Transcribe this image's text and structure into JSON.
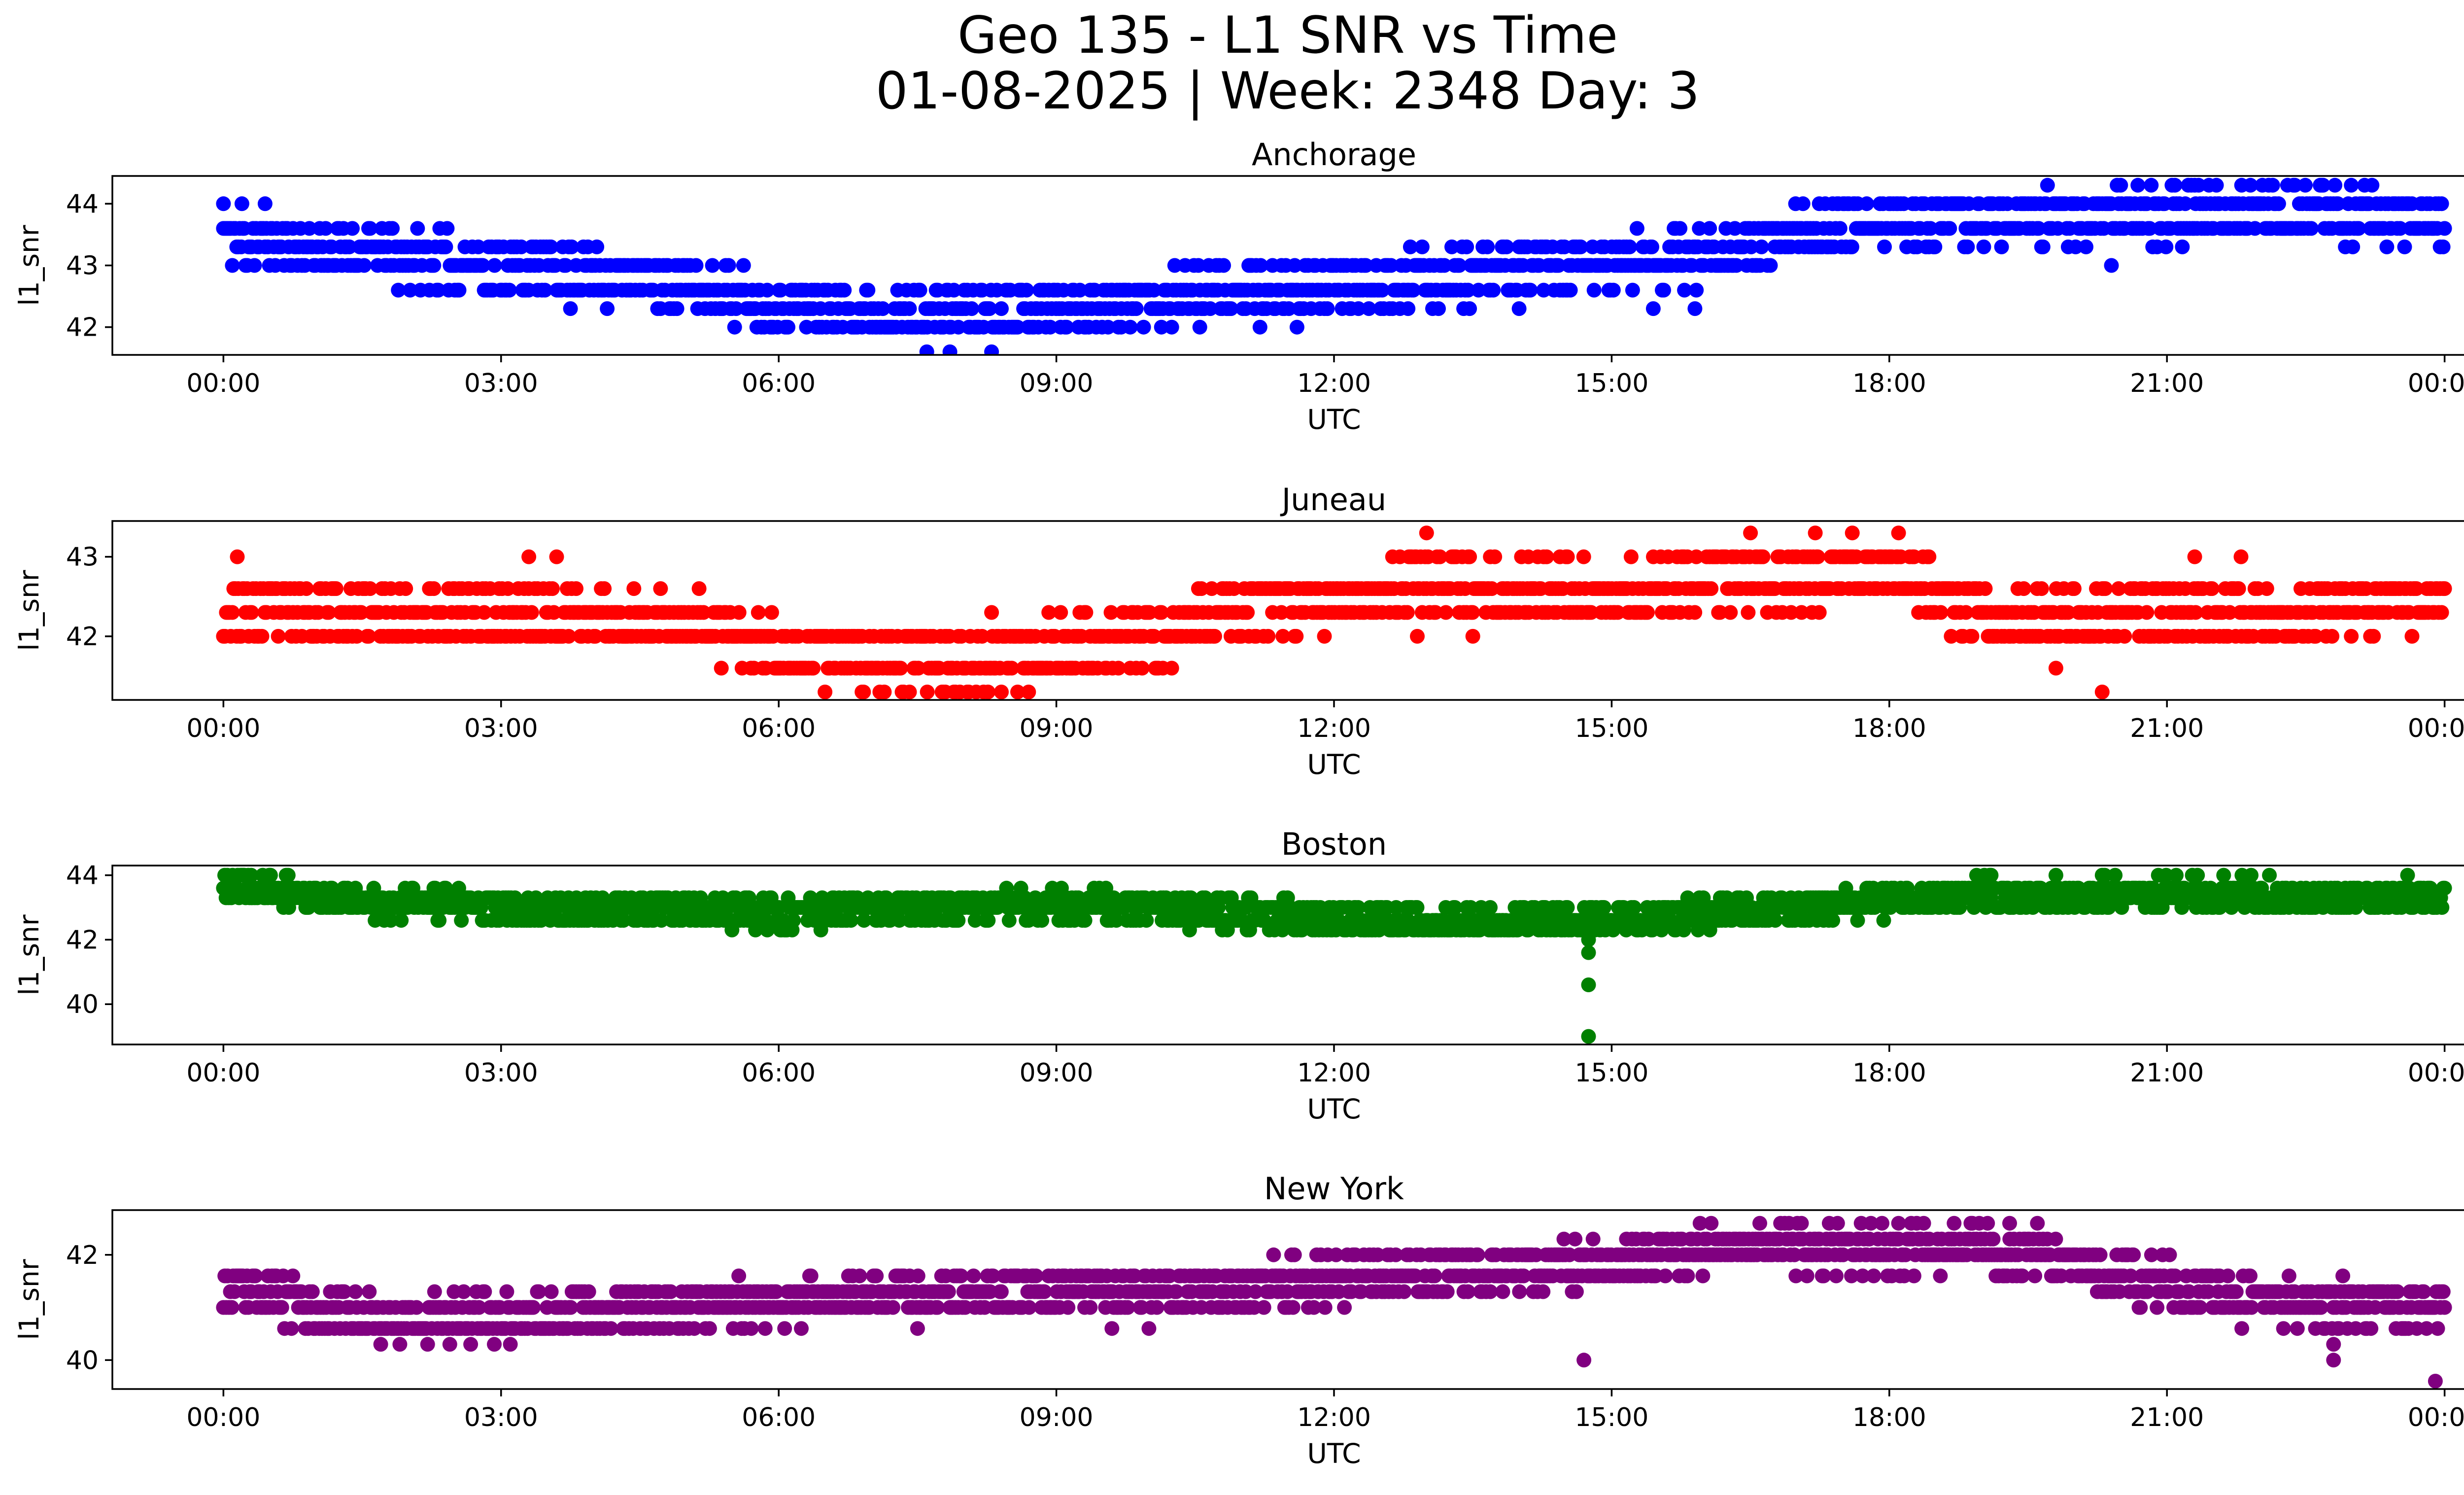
{
  "figure": {
    "title_line1": "Geo 135 - L1 SNR vs Time",
    "title_line2": "01-08-2025 | Week: 2348 Day: 3"
  },
  "chart_data": [
    {
      "type": "scatter",
      "title": "Anchorage",
      "xlabel": "UTC",
      "ylabel": "l1_snr",
      "color": "#0000ff",
      "xticks": [
        "00:00",
        "03:00",
        "06:00",
        "09:00",
        "12:00",
        "15:00",
        "18:00",
        "21:00",
        "00:00"
      ],
      "xlim": [
        -1.2,
        25.2
      ],
      "ylim": [
        41.55,
        44.45
      ],
      "yticks": [
        42,
        43,
        44
      ],
      "trend": [
        [
          0,
          43.45
        ],
        [
          1,
          43.25
        ],
        [
          3,
          43.0
        ],
        [
          5,
          42.7
        ],
        [
          6,
          42.4
        ],
        [
          7.5,
          42.2
        ],
        [
          9,
          42.35
        ],
        [
          11,
          42.55
        ],
        [
          13,
          42.8
        ],
        [
          15,
          43.0
        ],
        [
          16.5,
          43.3
        ],
        [
          17.5,
          43.7
        ],
        [
          20,
          43.8
        ],
        [
          22,
          43.85
        ],
        [
          24,
          43.75
        ]
      ],
      "jitter": 0.8,
      "levels": [
        41.6,
        42.0,
        42.3,
        42.6,
        43.0,
        43.3,
        43.6,
        44.0,
        44.3
      ],
      "outliers": [
        [
          7.6,
          41.6
        ],
        [
          7.85,
          41.6
        ],
        [
          8.3,
          41.6
        ],
        [
          6.3,
          42.0
        ],
        [
          9.7,
          42.0
        ],
        [
          10.55,
          42.0
        ],
        [
          11.2,
          42.0
        ],
        [
          11.6,
          42.0
        ],
        [
          2.5,
          42.6
        ],
        [
          2.9,
          42.6
        ],
        [
          14.0,
          43.3
        ],
        [
          15.9,
          43.3
        ],
        [
          20.4,
          43.0
        ],
        [
          20.5,
          44.3
        ],
        [
          21.3,
          44.3
        ],
        [
          22.1,
          44.3
        ],
        [
          0.0,
          44.0
        ],
        [
          0.2,
          44.0
        ],
        [
          0.45,
          44.0
        ],
        [
          12.8,
          42.3
        ],
        [
          14.0,
          42.3
        ],
        [
          15.45,
          42.3
        ],
        [
          15.9,
          42.3
        ],
        [
          3.75,
          42.3
        ],
        [
          4.9,
          42.3
        ]
      ],
      "n_points": 1500,
      "seed": 11
    },
    {
      "type": "scatter",
      "title": "Juneau",
      "xlabel": "UTC",
      "ylabel": "l1_snr",
      "color": "#ff0000",
      "xticks": [
        "00:00",
        "03:00",
        "06:00",
        "09:00",
        "12:00",
        "15:00",
        "18:00",
        "21:00",
        "00:00"
      ],
      "xlim": [
        -1.2,
        25.2
      ],
      "ylim": [
        41.2,
        43.45
      ],
      "yticks": [
        42,
        43
      ],
      "trend": [
        [
          0,
          42.35
        ],
        [
          3,
          42.25
        ],
        [
          5,
          42.15
        ],
        [
          6.2,
          41.8
        ],
        [
          8,
          41.7
        ],
        [
          9,
          41.85
        ],
        [
          10,
          42.0
        ],
        [
          11.5,
          42.4
        ],
        [
          13,
          42.6
        ],
        [
          15,
          42.5
        ],
        [
          16.5,
          42.7
        ],
        [
          18,
          42.85
        ],
        [
          19,
          42.2
        ],
        [
          20.5,
          42.3
        ],
        [
          22,
          42.3
        ],
        [
          24,
          42.5
        ]
      ],
      "jitter": 0.7,
      "levels": [
        41.3,
        41.6,
        42.0,
        42.3,
        42.6,
        43.0,
        43.3
      ],
      "outliers": [
        [
          0.15,
          43.0
        ],
        [
          3.3,
          43.0
        ],
        [
          3.6,
          43.0
        ],
        [
          13.0,
          43.3
        ],
        [
          16.5,
          43.3
        ],
        [
          17.2,
          43.3
        ],
        [
          17.6,
          43.3
        ],
        [
          18.1,
          43.3
        ],
        [
          6.5,
          41.3
        ],
        [
          6.9,
          41.3
        ],
        [
          7.8,
          41.3
        ],
        [
          8.7,
          41.3
        ],
        [
          20.3,
          41.3
        ],
        [
          5.7,
          41.6
        ],
        [
          19.8,
          41.6
        ],
        [
          8.3,
          42.3
        ],
        [
          21.3,
          43.0
        ],
        [
          21.8,
          43.0
        ],
        [
          14.1,
          43.0
        ],
        [
          12.9,
          42.0
        ],
        [
          13.5,
          42.0
        ]
      ],
      "n_points": 1500,
      "seed": 23
    },
    {
      "type": "scatter",
      "title": "Boston",
      "xlabel": "UTC",
      "ylabel": "l1_snr",
      "color": "#008000",
      "xticks": [
        "00:00",
        "03:00",
        "06:00",
        "09:00",
        "12:00",
        "15:00",
        "18:00",
        "21:00",
        "00:00"
      ],
      "xlim": [
        -1.2,
        25.2
      ],
      "ylim": [
        38.75,
        44.3
      ],
      "yticks": [
        40,
        42,
        44
      ],
      "trend": [
        [
          0,
          43.7
        ],
        [
          1,
          43.3
        ],
        [
          3,
          43.0
        ],
        [
          6,
          42.8
        ],
        [
          9,
          43.1
        ],
        [
          11,
          42.8
        ],
        [
          13,
          42.5
        ],
        [
          15,
          42.6
        ],
        [
          17,
          43.0
        ],
        [
          19,
          43.4
        ],
        [
          21,
          43.4
        ],
        [
          24,
          43.3
        ]
      ],
      "jitter": 0.9,
      "levels": [
        42.3,
        42.6,
        43.0,
        43.3,
        43.6,
        44.0
      ],
      "outliers": [
        [
          14.75,
          39.0
        ],
        [
          14.75,
          40.6
        ],
        [
          14.75,
          41.6
        ],
        [
          14.75,
          42.0
        ],
        [
          0.3,
          44.0
        ],
        [
          0.7,
          44.0
        ],
        [
          19.1,
          44.0
        ],
        [
          19.8,
          44.0
        ],
        [
          20.3,
          44.0
        ],
        [
          21.1,
          44.0
        ],
        [
          23.6,
          44.0
        ]
      ],
      "n_points": 1700,
      "seed": 37
    },
    {
      "type": "scatter",
      "title": "New York",
      "xlabel": "UTC",
      "ylabel": "l1_snr",
      "color": "#800080",
      "xticks": [
        "00:00",
        "03:00",
        "06:00",
        "09:00",
        "12:00",
        "15:00",
        "18:00",
        "21:00",
        "00:00"
      ],
      "xlim": [
        -1.2,
        25.2
      ],
      "ylim": [
        39.45,
        42.85
      ],
      "yticks": [
        40,
        42
      ],
      "trend": [
        [
          0,
          41.4
        ],
        [
          1,
          41.0
        ],
        [
          2,
          40.8
        ],
        [
          3,
          40.85
        ],
        [
          5,
          41.0
        ],
        [
          7,
          41.2
        ],
        [
          9,
          41.3
        ],
        [
          11,
          41.4
        ],
        [
          13,
          41.6
        ],
        [
          15,
          41.85
        ],
        [
          16,
          42.1
        ],
        [
          18,
          42.15
        ],
        [
          19.5,
          42.05
        ],
        [
          20.5,
          41.6
        ],
        [
          22,
          41.1
        ],
        [
          24,
          41.0
        ]
      ],
      "jitter": 0.8,
      "levels": [
        40.3,
        40.6,
        41.0,
        41.3,
        41.6,
        42.0,
        42.3,
        42.6
      ],
      "outliers": [
        [
          23.9,
          39.6
        ],
        [
          22.8,
          40.0
        ],
        [
          22.8,
          40.3
        ],
        [
          18.1,
          42.6
        ],
        [
          18.7,
          42.6
        ],
        [
          19.3,
          42.6
        ],
        [
          19.6,
          42.6
        ],
        [
          1.7,
          40.3
        ],
        [
          3.1,
          40.3
        ],
        [
          9.6,
          40.6
        ],
        [
          10.0,
          40.6
        ],
        [
          7.5,
          40.6
        ],
        [
          22.9,
          41.6
        ],
        [
          14.7,
          40.0
        ]
      ],
      "n_points": 1600,
      "seed": 53
    }
  ]
}
